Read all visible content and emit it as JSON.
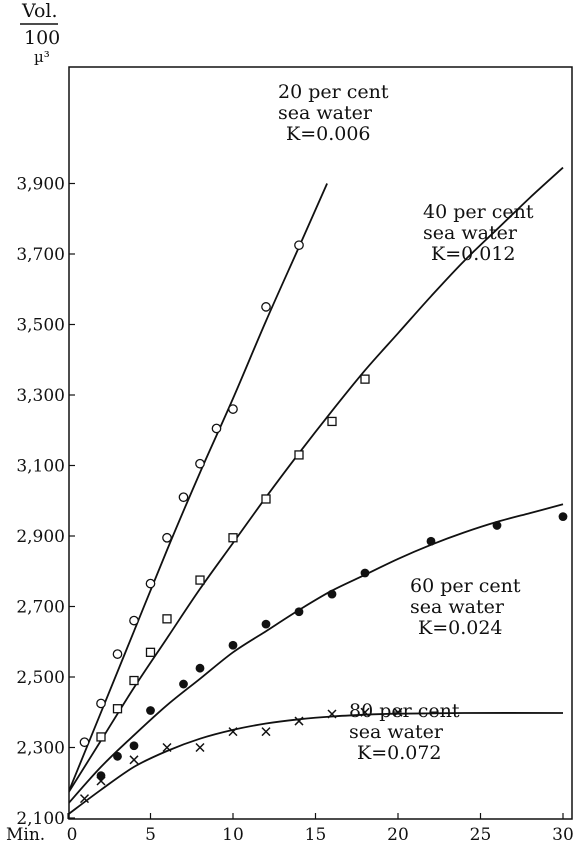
{
  "chart_data": {
    "type": "scatter",
    "ylabel_top": "Vol.",
    "ylabel_bottom": "100",
    "ylabel_unit": "µ³",
    "xlabel": "Min.",
    "xlim": [
      0,
      30
    ],
    "ylim": [
      2100,
      3950
    ],
    "x_ticks": [
      0,
      5,
      10,
      15,
      20,
      25,
      30
    ],
    "x_tick_labels": [
      "0",
      "5",
      "10",
      "15",
      "20",
      "25",
      "30"
    ],
    "y_ticks": [
      2100,
      2300,
      2500,
      2700,
      2900,
      3100,
      3300,
      3500,
      3700,
      3900
    ],
    "y_tick_labels": [
      "2,100",
      "2,300",
      "2,500",
      "2,700",
      "2,900",
      "3,100",
      "3,300",
      "3,500",
      "3,700",
      "3,900"
    ],
    "series": [
      {
        "label_lines": [
          "20 per cent",
          "sea water",
          "K=0.006"
        ],
        "marker": "open-circle",
        "points": [
          [
            1,
            2315
          ],
          [
            2,
            2425
          ],
          [
            3,
            2565
          ],
          [
            4,
            2660
          ],
          [
            5,
            2765
          ],
          [
            6,
            2895
          ],
          [
            7,
            3010
          ],
          [
            8,
            3105
          ],
          [
            9,
            3205
          ],
          [
            10,
            3260
          ],
          [
            12,
            3550
          ],
          [
            14,
            3725
          ]
        ],
        "curve": [
          [
            0,
            2170
          ],
          [
            2,
            2400
          ],
          [
            4,
            2630
          ],
          [
            6,
            2860
          ],
          [
            8,
            3080
          ],
          [
            10,
            3290
          ],
          [
            12,
            3510
          ],
          [
            14,
            3720
          ],
          [
            15.7,
            3900
          ]
        ]
      },
      {
        "label_lines": [
          "40 per cent",
          "sea water",
          "K=0.012"
        ],
        "marker": "open-square",
        "points": [
          [
            2,
            2330
          ],
          [
            3,
            2410
          ],
          [
            4,
            2490
          ],
          [
            5,
            2570
          ],
          [
            6,
            2665
          ],
          [
            8,
            2775
          ],
          [
            10,
            2895
          ],
          [
            12,
            3005
          ],
          [
            14,
            3130
          ],
          [
            16,
            3225
          ],
          [
            18,
            3345
          ]
        ],
        "curve": [
          [
            0,
            2170
          ],
          [
            2,
            2320
          ],
          [
            4,
            2470
          ],
          [
            6,
            2610
          ],
          [
            8,
            2750
          ],
          [
            10,
            2880
          ],
          [
            12,
            3010
          ],
          [
            14,
            3135
          ],
          [
            16,
            3255
          ],
          [
            18,
            3370
          ],
          [
            20,
            3475
          ],
          [
            22,
            3580
          ],
          [
            24,
            3680
          ],
          [
            26,
            3770
          ],
          [
            28,
            3860
          ],
          [
            30,
            3945
          ]
        ]
      },
      {
        "label_lines": [
          "60 per cent",
          "sea water",
          "K=0.024"
        ],
        "marker": "filled-circle",
        "points": [
          [
            2,
            2220
          ],
          [
            3,
            2275
          ],
          [
            4,
            2305
          ],
          [
            5,
            2405
          ],
          [
            7,
            2480
          ],
          [
            8,
            2525
          ],
          [
            10,
            2590
          ],
          [
            12,
            2650
          ],
          [
            14,
            2685
          ],
          [
            16,
            2735
          ],
          [
            18,
            2795
          ],
          [
            22,
            2885
          ],
          [
            26,
            2930
          ],
          [
            30,
            2955
          ]
        ],
        "curve": [
          [
            0,
            2140
          ],
          [
            2,
            2245
          ],
          [
            4,
            2335
          ],
          [
            6,
            2420
          ],
          [
            8,
            2495
          ],
          [
            10,
            2570
          ],
          [
            12,
            2630
          ],
          [
            14,
            2690
          ],
          [
            16,
            2745
          ],
          [
            18,
            2790
          ],
          [
            20,
            2835
          ],
          [
            22,
            2875
          ],
          [
            24,
            2910
          ],
          [
            26,
            2940
          ],
          [
            28,
            2965
          ],
          [
            30,
            2990
          ]
        ]
      },
      {
        "label_lines": [
          "80 per cent",
          "sea water",
          "K=0.072"
        ],
        "marker": "cross",
        "points": [
          [
            1,
            2155
          ],
          [
            2,
            2205
          ],
          [
            4,
            2265
          ],
          [
            6,
            2300
          ],
          [
            8,
            2300
          ],
          [
            10,
            2345
          ],
          [
            12,
            2345
          ],
          [
            14,
            2375
          ],
          [
            16,
            2395
          ],
          [
            18,
            2400
          ],
          [
            20,
            2400
          ]
        ],
        "curve": [
          [
            0,
            2110
          ],
          [
            2,
            2180
          ],
          [
            4,
            2245
          ],
          [
            6,
            2290
          ],
          [
            8,
            2325
          ],
          [
            10,
            2350
          ],
          [
            12,
            2368
          ],
          [
            14,
            2380
          ],
          [
            16,
            2388
          ],
          [
            18,
            2393
          ],
          [
            20,
            2396
          ],
          [
            24,
            2398
          ],
          [
            30,
            2398
          ]
        ]
      }
    ]
  }
}
